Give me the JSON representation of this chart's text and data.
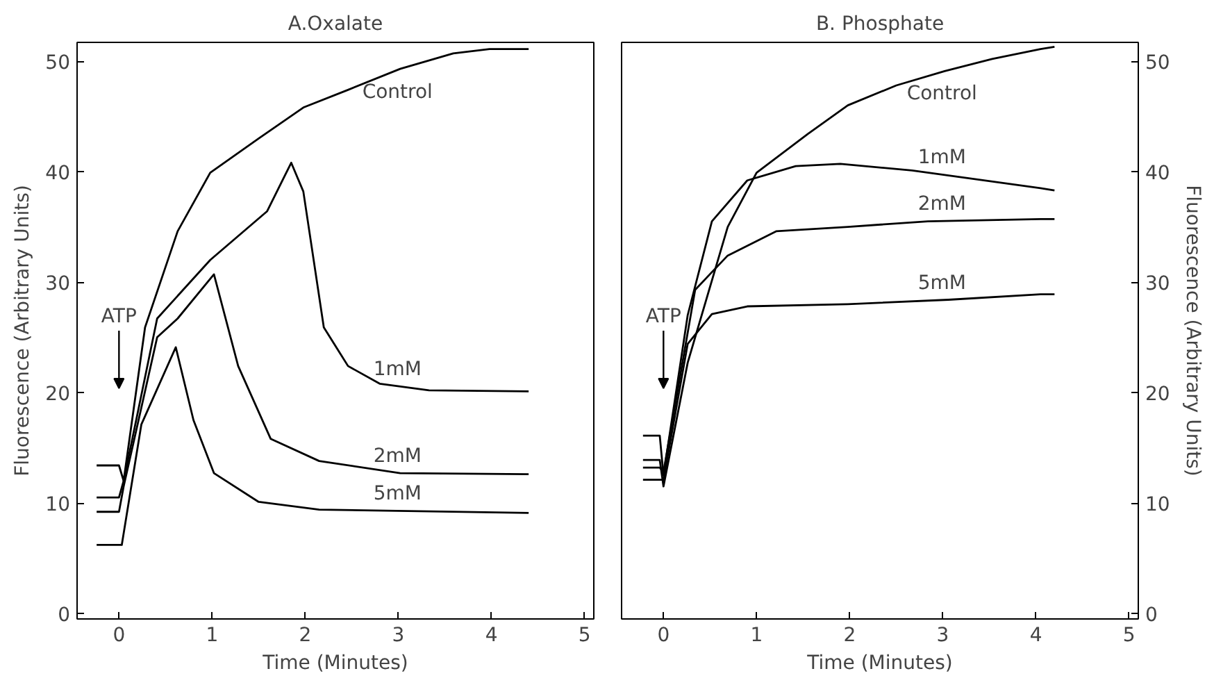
{
  "chart_data": [
    {
      "type": "line",
      "title": "A.Oxalate",
      "xlabel": "Time (Minutes)",
      "ylabel": "Fluorescence (Arbitrary Units)",
      "xlim": [
        -0.45,
        5.1
      ],
      "ylim": [
        -0.5,
        51.7
      ],
      "xticks": [
        0,
        1,
        2,
        3,
        4,
        5
      ],
      "yticks": [
        0,
        10,
        20,
        30,
        40,
        50
      ],
      "grid": false,
      "marker": "none",
      "line_style": "solid",
      "annotations": [
        "ATP"
      ],
      "series": [
        {
          "name": "Control",
          "color": "#000000",
          "x": [
            -0.24,
            0,
            0.05,
            0.28,
            0.63,
            0.98,
            1.5,
            1.98,
            2.46,
            3.02,
            3.59,
            3.98,
            4.4
          ],
          "values": [
            13.4,
            13.4,
            12,
            25.9,
            34.6,
            39.9,
            43,
            45.8,
            47.4,
            49.3,
            50.7,
            51.1,
            51.1
          ]
        },
        {
          "name": "1mM",
          "color": "#000000",
          "x": [
            -0.24,
            0,
            0.05,
            0.41,
            0.98,
            1.59,
            1.85,
            1.98,
            2.2,
            2.46,
            2.8,
            3.33,
            4.4
          ],
          "values": [
            10.5,
            10.5,
            12,
            26.7,
            32,
            36.4,
            40.8,
            38.2,
            25.9,
            22.4,
            20.8,
            20.2,
            20.1
          ]
        },
        {
          "name": "2mM",
          "color": "#000000",
          "x": [
            -0.24,
            0,
            0.05,
            0.41,
            0.63,
            1.02,
            1.28,
            1.63,
            2.15,
            3.02,
            4.4
          ],
          "values": [
            9.2,
            9.2,
            11.5,
            25,
            26.7,
            30.7,
            22.4,
            15.8,
            13.8,
            12.7,
            12.6
          ]
        },
        {
          "name": "5mM",
          "color": "#000000",
          "x": [
            -0.24,
            0.03,
            0.24,
            0.61,
            0.8,
            1.02,
            1.5,
            2.15,
            4.4
          ],
          "values": [
            6.2,
            6.2,
            17.1,
            24.1,
            17.5,
            12.7,
            10.1,
            9.4,
            9.1
          ]
        }
      ]
    },
    {
      "type": "line",
      "title": "B. Phosphate",
      "xlabel": "Time (Minutes)",
      "ylabel": "Fluorescence (Arbitrary Units)",
      "xlim": [
        -0.45,
        5.1
      ],
      "ylim": [
        -0.5,
        51.7
      ],
      "xticks": [
        0,
        1,
        2,
        3,
        4,
        5
      ],
      "yticks": [
        0,
        10,
        20,
        30,
        40,
        50
      ],
      "grid": false,
      "marker": "none",
      "line_style": "solid",
      "annotations": [
        "ATP"
      ],
      "series": [
        {
          "name": "Control",
          "color": "#000000",
          "x": [
            -0.22,
            -0.04,
            0,
            0.26,
            0.69,
            1,
            1.55,
            1.98,
            2.5,
            3.02,
            3.53,
            4.05,
            4.2
          ],
          "values": [
            13.9,
            13.9,
            11.5,
            22.7,
            35,
            39.9,
            43.4,
            46,
            47.8,
            49.1,
            50.2,
            51.1,
            51.3
          ]
        },
        {
          "name": "1mM",
          "color": "#000000",
          "x": [
            -0.22,
            -0.04,
            0,
            0.26,
            0.52,
            0.9,
            1.42,
            1.9,
            2.67,
            3.28,
            4.05,
            4.2
          ],
          "values": [
            16.1,
            16.1,
            12.5,
            27,
            35.5,
            39.2,
            40.5,
            40.7,
            40.1,
            39.4,
            38.5,
            38.3
          ]
        },
        {
          "name": "2mM",
          "color": "#000000",
          "x": [
            -0.22,
            -0.04,
            0,
            0.34,
            0.69,
            1.21,
            1.98,
            2.84,
            4.05,
            4.2
          ],
          "values": [
            13.2,
            13.2,
            12.8,
            29.3,
            32.4,
            34.6,
            35,
            35.5,
            35.7,
            35.7
          ]
        },
        {
          "name": "5mM",
          "color": "#000000",
          "x": [
            -0.22,
            -0.04,
            0,
            0.26,
            0.52,
            0.9,
            1.98,
            3.06,
            4.05,
            4.2
          ],
          "values": [
            12.1,
            12.1,
            12.1,
            24.4,
            27.1,
            27.8,
            28,
            28.4,
            28.9,
            28.9
          ]
        }
      ]
    }
  ]
}
